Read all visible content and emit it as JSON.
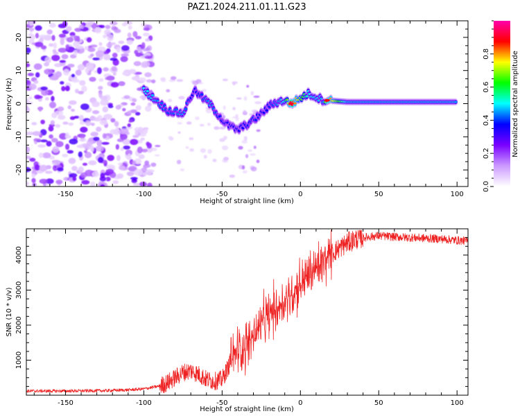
{
  "title": "PAZ1.2024.211.01.11.G23",
  "chart_data": [
    {
      "type": "heatmap",
      "title": "PAZ1.2024.211.01.11.G23",
      "xlabel": "Height of straight line (km)",
      "ylabel": "Frequency (Hz)",
      "xlim": [
        -175,
        107
      ],
      "ylim": [
        -25,
        25
      ],
      "xticks": [
        -150,
        -100,
        -50,
        0,
        50,
        100
      ],
      "yticks": [
        -20,
        -10,
        0,
        10,
        20
      ],
      "colorbar": {
        "label": "Normalized spectral amplitude",
        "range": [
          0,
          1
        ],
        "ticks": [
          0.0,
          0.2,
          0.4,
          0.6,
          0.8
        ],
        "colormap": [
          "#ffffff",
          "#cc99ff",
          "#7a00ff",
          "#0000ff",
          "#00ffff",
          "#00ff00",
          "#ffff00",
          "#ff0000",
          "#ff00aa"
        ]
      },
      "ridge": [
        {
          "x": -100,
          "freq": 4,
          "amp": 0.5
        },
        {
          "x": -92,
          "freq": 1,
          "amp": 0.45
        },
        {
          "x": -85,
          "freq": -2,
          "amp": 0.4
        },
        {
          "x": -75,
          "freq": -3,
          "amp": 0.45
        },
        {
          "x": -68,
          "freq": 4,
          "amp": 0.35
        },
        {
          "x": -58,
          "freq": 0,
          "amp": 0.45
        },
        {
          "x": -48,
          "freq": -6,
          "amp": 0.35
        },
        {
          "x": -40,
          "freq": -8,
          "amp": 0.35
        },
        {
          "x": -30,
          "freq": -5,
          "amp": 0.4
        },
        {
          "x": -25,
          "freq": -3,
          "amp": 0.35
        },
        {
          "x": -18,
          "freq": 0,
          "amp": 0.4
        },
        {
          "x": -10,
          "freq": 1,
          "amp": 0.5
        },
        {
          "x": -6,
          "freq": 0,
          "amp": 0.9
        },
        {
          "x": 5,
          "freq": 3,
          "amp": 0.5
        },
        {
          "x": 15,
          "freq": 1,
          "amp": 0.45
        },
        {
          "x": 17,
          "freq": 1,
          "amp": 0.88
        },
        {
          "x": 30,
          "freq": 0.5,
          "amp": 0.45
        },
        {
          "x": 60,
          "freq": 0.5,
          "amp": 0.45
        },
        {
          "x": 100,
          "freq": 0.5,
          "amp": 0.45
        }
      ]
    },
    {
      "type": "line",
      "xlabel": "Height of straight line (km)",
      "ylabel": "SNR (10 * v/v)",
      "xlim": [
        -175,
        107
      ],
      "ylim": [
        0,
        4750
      ],
      "xticks": [
        -150,
        -100,
        -50,
        0,
        50,
        100
      ],
      "yticks": [
        1000,
        2000,
        3000,
        4000
      ],
      "color": "#ee2222",
      "series": [
        {
          "x": [
            -175,
            -150,
            -125,
            -110,
            -100,
            -95,
            -90,
            -85,
            -80,
            -75,
            -70,
            -65,
            -60,
            -55,
            -50,
            -45,
            -40,
            -35,
            -30,
            -25,
            -20,
            -15,
            -10,
            -5,
            0,
            5,
            10,
            15,
            20,
            25,
            30,
            35,
            40,
            50,
            60,
            70,
            80,
            90,
            100,
            107
          ],
          "values": [
            120,
            120,
            130,
            150,
            180,
            220,
            260,
            350,
            500,
            650,
            700,
            600,
            450,
            400,
            450,
            900,
            1300,
            1400,
            1700,
            2000,
            2300,
            2500,
            2700,
            2900,
            3200,
            3400,
            3600,
            3800,
            4050,
            4200,
            4350,
            4450,
            4500,
            4550,
            4520,
            4500,
            4480,
            4460,
            4420,
            4400
          ]
        }
      ]
    }
  ]
}
